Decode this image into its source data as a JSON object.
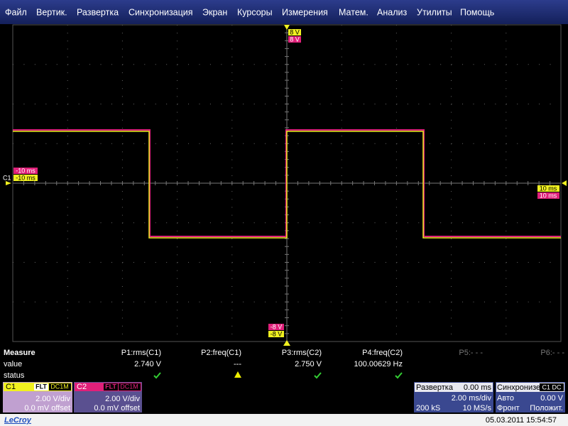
{
  "menu": [
    "Файл",
    "Вертик.",
    "Развертка",
    "Синхронизация",
    "Экран",
    "Курсоры",
    "Измерения",
    "Матем.",
    "Анализ",
    "Утилиты",
    "Помощь"
  ],
  "scope": {
    "top_c1": "8 V",
    "top_c2": "8 V",
    "bottom_c2": "-8 V",
    "bottom_c1": "-8 V",
    "left_c2": "-10 ms",
    "left_c1": "-10 ms",
    "channel_marker": "C1",
    "right_c1": "10 ms",
    "right_c2": "10 ms"
  },
  "measure": {
    "title": "Measure",
    "row_labels": [
      "value",
      "status"
    ],
    "params": [
      {
        "name": "P1:rms(C1)",
        "value": "2.740 V"
      },
      {
        "name": "P2:freq(C1)",
        "value": "---"
      },
      {
        "name": "P3:rms(C2)",
        "value": "2.750 V"
      },
      {
        "name": "P4:freq(C2)",
        "value": "100.00629 Hz"
      },
      {
        "name": "P5:- - -"
      },
      {
        "name": "P6:- - -"
      }
    ]
  },
  "channels": [
    {
      "name": "C1",
      "filter": "FLT",
      "coupling": "DC1M",
      "scale": "2.00 V/div",
      "offset": "0.0 mV offset"
    },
    {
      "name": "C2",
      "filter": "FLT",
      "coupling": "DC1M",
      "scale": "2.00 V/div",
      "offset": "0.0 mV offset"
    }
  ],
  "timebase": {
    "title": "Развертка",
    "delay": "0.00 ms",
    "scale": "2.00 ms/div",
    "samples": "200 kS",
    "rate": "10 MS/s"
  },
  "trigger": {
    "title": "Синхронизе",
    "source": "C1 DC",
    "mode": "Авто",
    "level": "0.00 V",
    "type": "Фронт",
    "slope": "Положит."
  },
  "footer": {
    "brand": "LeCroy",
    "timestamp": "05.03.2011 15:54:57"
  }
}
